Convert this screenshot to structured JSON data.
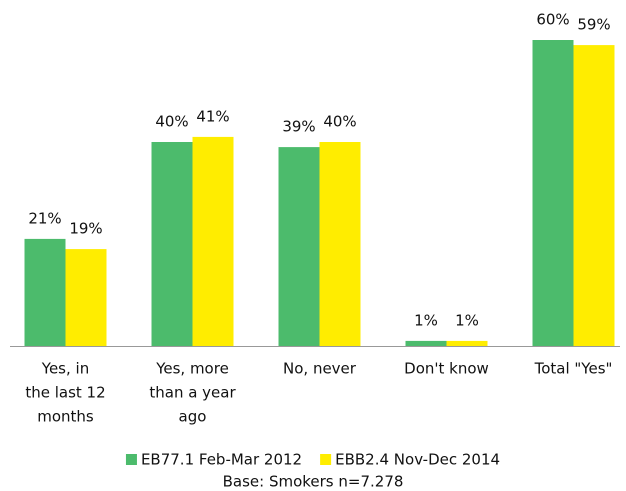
{
  "chart_data": {
    "type": "bar",
    "categories": [
      [
        "Yes, in",
        "the last 12",
        "months"
      ],
      [
        "Yes, more",
        "than a year",
        "ago"
      ],
      [
        "No, never"
      ],
      [
        "Don't know"
      ],
      [
        "Total \"Yes\""
      ]
    ],
    "series": [
      {
        "name": "EB77.1 Feb-Mar 2012",
        "color": "#4cbb6c",
        "values": [
          21,
          40,
          39,
          1,
          60
        ],
        "value_labels": [
          "21%",
          "40%",
          "39%",
          "1%",
          "60%"
        ]
      },
      {
        "name": "EBB2.4 Nov-Dec 2014",
        "color": "#ffed00",
        "values": [
          19,
          41,
          40,
          1,
          59
        ],
        "value_labels": [
          "19%",
          "41%",
          "40%",
          "1%",
          "59%"
        ]
      }
    ],
    "footnote": "Base: Smokers n=7.278"
  }
}
